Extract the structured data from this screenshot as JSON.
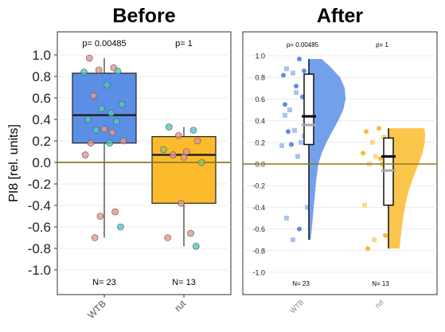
{
  "ylabel": "PI8 [rel. units]",
  "reference_color": "#8a7a1f",
  "chart_data": [
    {
      "type": "box-jitter",
      "title": "Before",
      "ylim": [
        -1.0,
        1.0
      ],
      "yticks": [
        "1.0",
        "0.8",
        "0.6",
        "0.4",
        "0.2",
        "0.0",
        "-0.2",
        "-0.4",
        "-0.6",
        "-0.8",
        "-1.0"
      ],
      "reference_line": 0.0,
      "categories": [
        "WTB",
        "rut"
      ],
      "pvalues": [
        "p= 0.00485",
        "p= 1"
      ],
      "counts": [
        "N= 23",
        "N= 13"
      ],
      "colors": [
        "#5b8fe6",
        "#fcbb2c"
      ],
      "point_colors": [
        "#e8958f",
        "#4ec9c2",
        "#8fc863"
      ],
      "boxes": [
        {
          "q1": 0.18,
          "median": 0.44,
          "q3": 0.83,
          "whisker_low": -0.7,
          "whisker_high": 0.97
        },
        {
          "q1": -0.38,
          "median": 0.07,
          "q3": 0.24,
          "whisker_low": -0.78,
          "whisker_high": 0.33
        }
      ],
      "points": [
        [
          {
            "y": 0.97,
            "c": 0
          },
          {
            "y": 0.88,
            "c": 0
          },
          {
            "y": 0.86,
            "c": 0
          },
          {
            "y": 0.85,
            "c": 1
          },
          {
            "y": 0.84,
            "c": 1
          },
          {
            "y": 0.72,
            "c": 1
          },
          {
            "y": 0.62,
            "c": 0
          },
          {
            "y": 0.54,
            "c": 1
          },
          {
            "y": 0.5,
            "c": 1
          },
          {
            "y": 0.46,
            "c": 1
          },
          {
            "y": 0.4,
            "c": 1
          },
          {
            "y": 0.38,
            "c": 1
          },
          {
            "y": 0.31,
            "c": 0
          },
          {
            "y": 0.3,
            "c": 1
          },
          {
            "y": 0.2,
            "c": 0
          },
          {
            "y": 0.18,
            "c": 0
          },
          {
            "y": 0.18,
            "c": 1
          },
          {
            "y": 0.07,
            "c": 0
          },
          {
            "y": -0.46,
            "c": 0
          },
          {
            "y": -0.5,
            "c": 0
          },
          {
            "y": -0.6,
            "c": 1
          },
          {
            "y": -0.7,
            "c": 0
          },
          {
            "y": 0.28,
            "c": 0
          }
        ],
        [
          {
            "y": 0.33,
            "c": 1
          },
          {
            "y": 0.3,
            "c": 1
          },
          {
            "y": 0.25,
            "c": 0
          },
          {
            "y": 0.2,
            "c": 0
          },
          {
            "y": 0.12,
            "c": 2
          },
          {
            "y": 0.1,
            "c": 0
          },
          {
            "y": 0.07,
            "c": 0
          },
          {
            "y": 0.0,
            "c": 2
          },
          {
            "y": -0.38,
            "c": 0
          },
          {
            "y": -0.66,
            "c": 0
          },
          {
            "y": -0.7,
            "c": 0
          },
          {
            "y": -0.78,
            "c": 1
          },
          {
            "y": 0.05,
            "c": 0
          }
        ]
      ]
    },
    {
      "type": "raincloud",
      "title": "After",
      "ylim": [
        -1.0,
        1.0
      ],
      "yticks": [
        "1.0",
        "0.8",
        "0.6",
        "0.4",
        "0.2",
        "0.0",
        "-0.2",
        "-0.4",
        "-0.6",
        "-0.8",
        "-1.0"
      ],
      "reference_line": 0.0,
      "categories": [
        "WTB",
        "rut"
      ],
      "pvalues": [
        "p= 0.00485",
        "p= 1"
      ],
      "counts": [
        "N= 23",
        "N= 13"
      ],
      "colors": [
        "#5b8fe6",
        "#fcbb2c"
      ],
      "light_colors": [
        "#a9c3ef",
        "#f9d98c"
      ],
      "boxes": [
        {
          "q1": 0.18,
          "median": 0.44,
          "mean": 0.36,
          "q3": 0.83,
          "whisker_low": -0.7,
          "whisker_high": 0.97
        },
        {
          "q1": -0.38,
          "median": 0.07,
          "mean": -0.06,
          "q3": 0.24,
          "whisker_low": -0.78,
          "whisker_high": 0.33
        }
      ],
      "density": [
        [
          [
            -0.7,
            0.05
          ],
          [
            -0.6,
            0.08
          ],
          [
            -0.45,
            0.12
          ],
          [
            -0.3,
            0.16
          ],
          [
            -0.15,
            0.2
          ],
          [
            0.0,
            0.26
          ],
          [
            0.1,
            0.35
          ],
          [
            0.2,
            0.48
          ],
          [
            0.3,
            0.64
          ],
          [
            0.4,
            0.8
          ],
          [
            0.5,
            0.94
          ],
          [
            0.6,
            1.0
          ],
          [
            0.7,
            0.98
          ],
          [
            0.8,
            0.85
          ],
          [
            0.9,
            0.58
          ],
          [
            0.97,
            0.35
          ]
        ],
        [
          [
            -0.78,
            0.3
          ],
          [
            -0.65,
            0.34
          ],
          [
            -0.5,
            0.4
          ],
          [
            -0.38,
            0.46
          ],
          [
            -0.25,
            0.55
          ],
          [
            -0.12,
            0.68
          ],
          [
            0.0,
            0.82
          ],
          [
            0.1,
            0.93
          ],
          [
            0.2,
            0.99
          ],
          [
            0.28,
            1.0
          ],
          [
            0.33,
            0.98
          ]
        ]
      ],
      "points": [
        [
          {
            "y": 0.97,
            "s": "circle"
          },
          {
            "y": 0.88,
            "s": "square"
          },
          {
            "y": 0.86,
            "s": "circle"
          },
          {
            "y": 0.84,
            "s": "square"
          },
          {
            "y": 0.82,
            "s": "circle"
          },
          {
            "y": 0.72,
            "s": "circle"
          },
          {
            "y": 0.62,
            "s": "circle"
          },
          {
            "y": 0.5,
            "s": "square"
          },
          {
            "y": 0.45,
            "s": "square"
          },
          {
            "y": 0.4,
            "s": "circle"
          },
          {
            "y": 0.31,
            "s": "square"
          },
          {
            "y": 0.3,
            "s": "circle"
          },
          {
            "y": 0.2,
            "s": "square"
          },
          {
            "y": 0.18,
            "s": "circle"
          },
          {
            "y": 0.17,
            "s": "square"
          },
          {
            "y": 0.07,
            "s": "square"
          },
          {
            "y": -0.4,
            "s": "square"
          },
          {
            "y": -0.5,
            "s": "square"
          },
          {
            "y": -0.6,
            "s": "circle"
          },
          {
            "y": -0.7,
            "s": "square"
          },
          {
            "y": 0.26,
            "s": "square"
          },
          {
            "y": 0.55,
            "s": "circle"
          },
          {
            "y": 0.66,
            "s": "square"
          }
        ],
        [
          {
            "y": 0.33,
            "s": "circle"
          },
          {
            "y": 0.3,
            "s": "circle"
          },
          {
            "y": 0.25,
            "s": "square"
          },
          {
            "y": 0.2,
            "s": "square"
          },
          {
            "y": 0.1,
            "s": "circle"
          },
          {
            "y": 0.07,
            "s": "square"
          },
          {
            "y": 0.0,
            "s": "circle"
          },
          {
            "y": 0.0,
            "s": "square"
          },
          {
            "y": -0.38,
            "s": "square"
          },
          {
            "y": -0.66,
            "s": "circle"
          },
          {
            "y": -0.7,
            "s": "square"
          },
          {
            "y": -0.78,
            "s": "circle"
          },
          {
            "y": 0.05,
            "s": "circle"
          }
        ]
      ]
    }
  ]
}
